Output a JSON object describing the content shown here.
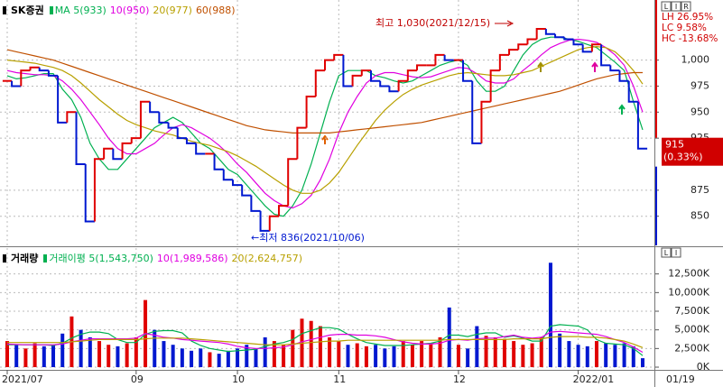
{
  "chart_data": [
    {
      "type": "line",
      "title": "SK증권",
      "values": [
        980,
        975,
        990,
        993,
        990,
        985,
        940,
        950,
        900,
        845,
        905,
        915,
        905,
        920,
        925,
        960,
        950,
        940,
        935,
        925,
        920,
        910,
        910,
        895,
        885,
        880,
        870,
        855,
        836,
        850,
        860,
        905,
        935,
        965,
        990,
        1000,
        1005,
        975,
        985,
        990,
        980,
        975,
        970,
        980,
        990,
        995,
        995,
        1005,
        1000,
        1000,
        980,
        920,
        960,
        990,
        1005,
        1010,
        1015,
        1020,
        1030,
        1025,
        1022,
        1020,
        1015,
        1008,
        1015,
        995,
        990,
        980,
        960,
        915
      ],
      "up_color": "#e00000",
      "down_color": "#0018d0",
      "series": [
        {
          "name": "MA 5(933)",
          "color": "#00b050",
          "values": [
            985,
            982,
            983,
            985,
            987,
            987,
            972,
            962,
            945,
            920,
            905,
            895,
            895,
            905,
            915,
            925,
            935,
            940,
            945,
            940,
            930,
            920,
            915,
            905,
            895,
            890,
            880,
            870,
            860,
            852,
            850,
            860,
            875,
            900,
            930,
            960,
            985,
            990,
            990,
            990,
            985,
            983,
            980,
            978,
            980,
            985,
            990,
            995,
            998,
            1000,
            995,
            980,
            970,
            970,
            975,
            990,
            1005,
            1015,
            1020,
            1022,
            1022,
            1020,
            1018,
            1015,
            1012,
            1005,
            998,
            990,
            960,
            933
          ]
        },
        {
          "name": "10(950)",
          "color": "#e000e0",
          "values": [
            990,
            988,
            987,
            986,
            986,
            985,
            980,
            972,
            962,
            950,
            938,
            925,
            915,
            910,
            910,
            915,
            920,
            928,
            935,
            938,
            935,
            930,
            925,
            918,
            910,
            900,
            892,
            882,
            872,
            865,
            860,
            858,
            862,
            870,
            885,
            905,
            930,
            950,
            965,
            978,
            985,
            988,
            988,
            986,
            984,
            983,
            984,
            987,
            990,
            993,
            992,
            987,
            980,
            978,
            978,
            982,
            990,
            997,
            1005,
            1012,
            1016,
            1019,
            1020,
            1019,
            1017,
            1012,
            1005,
            995,
            975,
            950
          ]
        },
        {
          "name": "20(977)",
          "color": "#b8a000",
          "values": [
            1000,
            999,
            998,
            997,
            995,
            993,
            990,
            985,
            978,
            970,
            962,
            955,
            948,
            942,
            938,
            935,
            932,
            930,
            928,
            925,
            922,
            920,
            918,
            915,
            912,
            908,
            903,
            898,
            892,
            886,
            880,
            875,
            872,
            872,
            875,
            882,
            892,
            905,
            918,
            930,
            942,
            952,
            960,
            967,
            972,
            976,
            979,
            982,
            985,
            987,
            988,
            987,
            986,
            985,
            985,
            986,
            988,
            990,
            994,
            998,
            1002,
            1006,
            1010,
            1012,
            1013,
            1012,
            1008,
            1000,
            990,
            977
          ]
        },
        {
          "name": "60(988)",
          "color": "#c05000",
          "values": [
            1010,
            1008,
            1006,
            1004,
            1002,
            1000,
            997,
            994,
            991,
            988,
            985,
            982,
            979,
            976,
            973,
            970,
            967,
            964,
            961,
            958,
            955,
            952,
            949,
            946,
            943,
            940,
            937,
            935,
            933,
            932,
            931,
            930,
            930,
            930,
            930,
            930,
            931,
            932,
            933,
            934,
            935,
            936,
            937,
            938,
            939,
            940,
            942,
            944,
            946,
            948,
            950,
            952,
            954,
            956,
            958,
            960,
            962,
            964,
            966,
            968,
            970,
            973,
            976,
            979,
            982,
            984,
            986,
            987,
            988,
            988
          ]
        }
      ],
      "ylim": [
        822,
        1056
      ],
      "yticks": [
        850,
        875,
        925,
        950,
        975,
        {
          "value": 1000,
          "label": "1,000"
        }
      ],
      "grid": true,
      "change": "(0.33%)",
      "stats": [
        "LH 26.95%",
        "LC  9.58%",
        "HC -13.68%"
      ],
      "annotations": [
        "최고 1,030(2021/12/15)",
        "←최저 836(2021/10/06)"
      ],
      "controls": [
        "L",
        "I",
        "R"
      ]
    },
    {
      "type": "bar",
      "title": "거래량",
      "categories": [
        "2021/07",
        null,
        null,
        null,
        null,
        null,
        null,
        null,
        null,
        null,
        null,
        null,
        null,
        null,
        "09",
        null,
        null,
        null,
        null,
        null,
        null,
        null,
        null,
        null,
        null,
        "10",
        null,
        null,
        null,
        null,
        null,
        null,
        null,
        null,
        null,
        null,
        "11",
        null,
        null,
        null,
        null,
        null,
        null,
        null,
        null,
        null,
        null,
        null,
        null,
        "12",
        null,
        null,
        null,
        null,
        null,
        null,
        null,
        null,
        null,
        null,
        null,
        null,
        "2022/01",
        null,
        null,
        null,
        null,
        null,
        null,
        null
      ],
      "values": [
        3500,
        3000,
        2500,
        3200,
        2800,
        3000,
        4500,
        6800,
        5000,
        4000,
        3500,
        3000,
        2800,
        3200,
        4000,
        9000,
        5000,
        3500,
        3000,
        2500,
        2200,
        2500,
        2000,
        1800,
        2200,
        2500,
        3000,
        2500,
        4000,
        3500,
        3000,
        5000,
        6500,
        6200,
        5500,
        4000,
        3500,
        3000,
        3200,
        2800,
        3000,
        2500,
        2800,
        3500,
        3000,
        3500,
        3200,
        4000,
        8000,
        3000,
        2500,
        5500,
        4200,
        4000,
        3800,
        3500,
        3000,
        3200,
        4000,
        14000,
        4500,
        3500,
        3000,
        2800,
        3500,
        3200,
        3000,
        3200,
        2800,
        1200
      ],
      "series": [
        {
          "name": "거래이평 5(1,543,750)",
          "color": "#00b050",
          "values": [
            3000,
            3000,
            3000,
            3000,
            3000,
            2900,
            3200,
            3900,
            4400,
            4700,
            4700,
            4500,
            3700,
            3300,
            3300,
            4400,
            4800,
            4900,
            4900,
            4600,
            3500,
            2900,
            2500,
            2300,
            2100,
            2200,
            2300,
            2400,
            2800,
            3100,
            3300,
            3700,
            4500,
            4900,
            5300,
            5300,
            5100,
            4400,
            3800,
            3300,
            3100,
            2900,
            2900,
            2900,
            3000,
            3100,
            3200,
            3500,
            4300,
            4300,
            4100,
            4400,
            4600,
            4600,
            4000,
            4200,
            3900,
            3500,
            3500,
            5500,
            5700,
            5600,
            5500,
            5000,
            3700,
            3200,
            3100,
            3000,
            2500,
            1544
          ]
        },
        {
          "name": "10(1,989,586)",
          "color": "#e000e0",
          "values": [
            3100,
            3050,
            3000,
            3000,
            3000,
            3000,
            3100,
            3400,
            3600,
            3800,
            3800,
            3800,
            3800,
            3800,
            3900,
            4500,
            4300,
            4000,
            3900,
            3700,
            3600,
            3500,
            3400,
            3300,
            3100,
            2800,
            2600,
            2500,
            2500,
            2600,
            2700,
            3000,
            3400,
            3700,
            4000,
            4300,
            4400,
            4400,
            4300,
            4300,
            4200,
            4000,
            3700,
            3400,
            3200,
            3100,
            3100,
            3200,
            3600,
            3700,
            3600,
            3800,
            3900,
            3900,
            4100,
            4300,
            4000,
            3900,
            4000,
            4700,
            4800,
            4700,
            4600,
            4500,
            4400,
            4100,
            3700,
            3300,
            2700,
            1990
          ]
        },
        {
          "name": "20(2,624,757)",
          "color": "#b8a000",
          "values": [
            3300,
            3300,
            3300,
            3300,
            3300,
            3300,
            3300,
            3400,
            3500,
            3600,
            3700,
            3700,
            3700,
            3700,
            3700,
            3800,
            3900,
            3900,
            3900,
            3900,
            3800,
            3700,
            3600,
            3500,
            3400,
            3300,
            3200,
            3100,
            3000,
            3000,
            3000,
            3100,
            3200,
            3300,
            3400,
            3500,
            3500,
            3600,
            3600,
            3600,
            3600,
            3600,
            3600,
            3600,
            3600,
            3600,
            3600,
            3600,
            3700,
            3700,
            3700,
            3700,
            3700,
            3700,
            3700,
            3800,
            3800,
            3800,
            3800,
            4000,
            4100,
            4100,
            4100,
            4000,
            4000,
            3900,
            3700,
            3500,
            3100,
            2625
          ]
        }
      ],
      "ylim": [
        0,
        15000
      ],
      "yticks": [
        {
          "value": 0,
          "label": "0K"
        },
        {
          "value": 2500,
          "label": "2,500K"
        },
        {
          "value": 5000,
          "label": "5,000K"
        },
        {
          "value": 7500,
          "label": "7,500K"
        },
        {
          "value": 10000,
          "label": "10,000K"
        },
        {
          "value": 12500,
          "label": "12,500K"
        }
      ],
      "grid": true,
      "current_date": "01/19",
      "controls": [
        "L",
        "I"
      ]
    }
  ]
}
